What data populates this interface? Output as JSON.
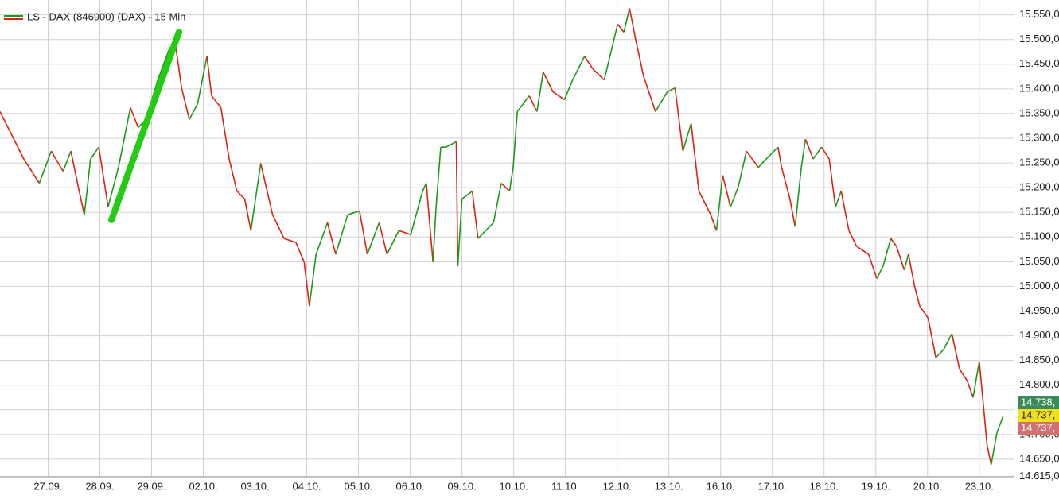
{
  "chart_data": {
    "type": "line",
    "series": [
      {
        "name": "LS - DAX (846900) (DAX) - 15 Min",
        "up_color": "#1a9a1a",
        "down_color": "#e02010",
        "x": [
          -0.93,
          -0.7,
          -0.47,
          -0.17,
          0.06,
          0.29,
          0.44,
          0.6,
          0.7,
          0.82,
          0.98,
          1.16,
          1.36,
          1.59,
          1.74,
          1.89,
          2.12,
          2.35,
          2.46,
          2.58,
          2.73,
          2.89,
          3.07,
          3.16,
          3.34,
          3.5,
          3.65,
          3.8,
          3.92,
          4.11,
          4.34,
          4.56,
          4.79,
          4.95,
          5.05,
          5.18,
          5.4,
          5.56,
          5.79,
          6.02,
          6.17,
          6.4,
          6.55,
          6.78,
          7.01,
          7.24,
          7.31,
          7.44,
          7.5,
          7.59,
          7.69,
          7.89,
          7.92,
          8.0,
          8.2,
          8.31,
          8.46,
          8.61,
          8.76,
          8.92,
          8.99,
          9.07,
          9.3,
          9.45,
          9.57,
          9.76,
          9.98,
          10.14,
          10.37,
          10.52,
          10.75,
          10.9,
          11.01,
          11.13,
          11.24,
          11.36,
          11.51,
          11.74,
          11.97,
          12.12,
          12.27,
          12.43,
          12.58,
          12.81,
          12.92,
          13.04,
          13.19,
          13.34,
          13.5,
          13.73,
          13.88,
          14.11,
          14.18,
          14.34,
          14.44,
          14.56,
          14.64,
          14.79,
          14.95,
          15.1,
          15.22,
          15.33,
          15.48,
          15.63,
          15.86,
          16.02,
          16.14,
          16.29,
          16.4,
          16.55,
          16.63,
          16.75,
          16.85,
          17.01,
          17.16,
          17.31,
          17.47,
          17.62,
          17.77,
          17.88,
          18.0,
          18.08,
          18.15,
          18.23,
          18.34,
          18.46
        ],
        "values": [
          15354,
          15306,
          15258,
          15209,
          15274,
          15233,
          15274,
          15193,
          15145,
          15258,
          15282,
          15161,
          15241,
          15362,
          15322,
          15338,
          15418,
          15483,
          15491,
          15402,
          15338,
          15370,
          15466,
          15386,
          15362,
          15258,
          15193,
          15177,
          15113,
          15249,
          15145,
          15097,
          15089,
          15049,
          14960,
          15065,
          15129,
          15065,
          15145,
          15153,
          15065,
          15129,
          15065,
          15113,
          15105,
          15193,
          15209,
          15049,
          15161,
          15282,
          15282,
          15293,
          15041,
          15177,
          15193,
          15097,
          15113,
          15129,
          15209,
          15193,
          15241,
          15354,
          15386,
          15354,
          15434,
          15394,
          15378,
          15418,
          15466,
          15442,
          15418,
          15483,
          15531,
          15515,
          15563,
          15499,
          15426,
          15354,
          15394,
          15402,
          15274,
          15330,
          15193,
          15145,
          15113,
          15225,
          15161,
          15201,
          15274,
          15241,
          15258,
          15282,
          15241,
          15177,
          15121,
          15241,
          15298,
          15258,
          15282,
          15258,
          15161,
          15193,
          15113,
          15081,
          15065,
          15016,
          15041,
          15097,
          15081,
          15033,
          15065,
          15000,
          14960,
          14936,
          14856,
          14872,
          14904,
          14832,
          14808,
          14775,
          14848,
          14759,
          14679,
          14639,
          14703,
          14737
        ]
      }
    ],
    "xlim": [
      -0.93,
      18.68
    ],
    "xticks": [
      {
        "value": 0,
        "label": "27.09."
      },
      {
        "value": 1,
        "label": "28.09."
      },
      {
        "value": 2,
        "label": "29.09."
      },
      {
        "value": 3,
        "label": "02.10."
      },
      {
        "value": 4,
        "label": "03.10."
      },
      {
        "value": 5,
        "label": "04.10."
      },
      {
        "value": 6,
        "label": "05.10."
      },
      {
        "value": 7,
        "label": "06.10."
      },
      {
        "value": 8,
        "label": "09.10."
      },
      {
        "value": 9,
        "label": "10.10."
      },
      {
        "value": 10,
        "label": "11.10."
      },
      {
        "value": 11,
        "label": "12.10."
      },
      {
        "value": 12,
        "label": "13.10."
      },
      {
        "value": 13,
        "label": "16.10."
      },
      {
        "value": 14,
        "label": "17.10."
      },
      {
        "value": 15,
        "label": "18.10."
      },
      {
        "value": 16,
        "label": "19.10."
      },
      {
        "value": 17,
        "label": "20.10."
      },
      {
        "value": 18,
        "label": "23.10."
      }
    ],
    "ylim": [
      14600,
      15580
    ],
    "yticks": [
      {
        "value": 14615,
        "label": "14.615,0"
      },
      {
        "value": 14650,
        "label": "14.650,0"
      },
      {
        "value": 14700,
        "label": "14.700,0"
      },
      {
        "value": 14750,
        "label": "14.750,0"
      },
      {
        "value": 14800,
        "label": "14.800,0"
      },
      {
        "value": 14850,
        "label": "14.850,0"
      },
      {
        "value": 14900,
        "label": "14.900,0"
      },
      {
        "value": 14950,
        "label": "14.950,0"
      },
      {
        "value": 15000,
        "label": "15.000,0"
      },
      {
        "value": 15050,
        "label": "15.050,0"
      },
      {
        "value": 15100,
        "label": "15.100,0"
      },
      {
        "value": 15150,
        "label": "15.150,0"
      },
      {
        "value": 15200,
        "label": "15.200,0"
      },
      {
        "value": 15250,
        "label": "15.250,0"
      },
      {
        "value": 15300,
        "label": "15.300,0"
      },
      {
        "value": 15350,
        "label": "15.350,0"
      },
      {
        "value": 15400,
        "label": "15.400,0"
      },
      {
        "value": 15450,
        "label": "15.450,0"
      },
      {
        "value": 15500,
        "label": "15.500,0"
      },
      {
        "value": 15550,
        "label": "15.550,0"
      }
    ],
    "grid": true,
    "price_tags": [
      {
        "value": 14738,
        "label": "14.738,",
        "color": "#3a8a5a",
        "text_color": "#ffffff"
      },
      {
        "value": 14737,
        "label": "14.737,",
        "color": "#f0e020",
        "text_color": "#222222"
      },
      {
        "value": 14737,
        "label": "14.737,",
        "color": "#d07070",
        "text_color": "#ffffff"
      }
    ]
  }
}
